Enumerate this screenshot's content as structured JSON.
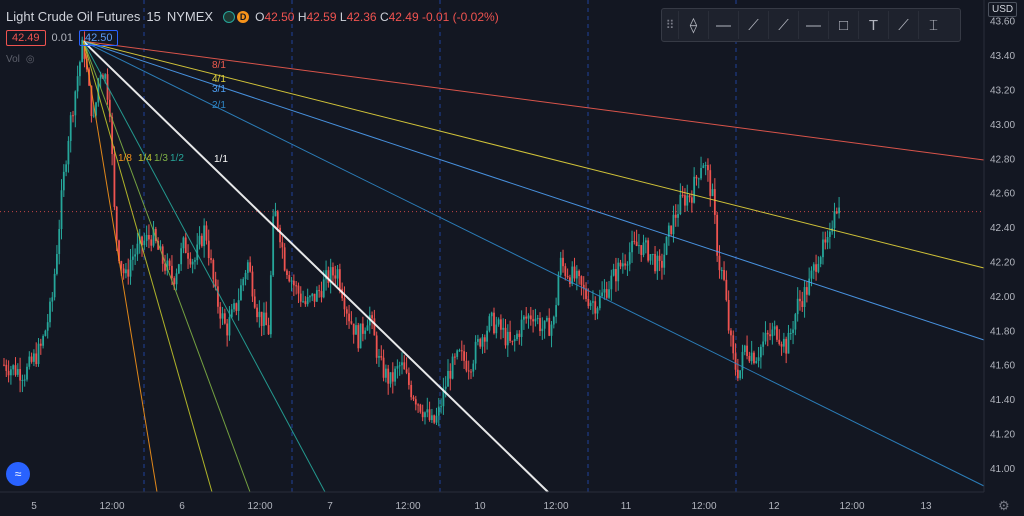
{
  "header": {
    "symbol": "Light Crude Oil Futures",
    "interval": "15",
    "exchange": "NYMEX",
    "badge_letter": "D",
    "ohlc": {
      "o_label": "O",
      "o_value": "42.50",
      "h_label": "H",
      "h_value": "42.59",
      "l_label": "L",
      "l_value": "42.36",
      "c_label": "C",
      "c_value": "42.49",
      "change": "-0.01 (-0.02%)"
    },
    "bid": "42.49",
    "spread": "0.01",
    "ask": "42.50",
    "vol_label": "Vol"
  },
  "toolbar": {
    "items": [
      {
        "name": "drag-handle-icon",
        "glyph": "⠿"
      },
      {
        "name": "vertical-line-icon",
        "glyph": "⟠"
      },
      {
        "name": "horizontal-ray-icon",
        "glyph": "—"
      },
      {
        "name": "trend-line-icon",
        "glyph": "⟋"
      },
      {
        "name": "ray-icon",
        "glyph": "⟋"
      },
      {
        "name": "horizontal-line-icon",
        "glyph": "—"
      },
      {
        "name": "rectangle-icon",
        "glyph": "□"
      },
      {
        "name": "text-icon",
        "glyph": "T"
      },
      {
        "name": "brush-icon",
        "glyph": "⟋"
      },
      {
        "name": "price-range-icon",
        "glyph": "⌶"
      }
    ]
  },
  "axis": {
    "currency": "USD",
    "colors": {
      "up": "#26a69a",
      "down": "#ef5350",
      "current_price": "#ef5350"
    }
  },
  "chart_data": {
    "type": "candlestick",
    "y_ticks": [
      "43.60",
      "43.40",
      "43.20",
      "43.00",
      "42.80",
      "42.60",
      "42.40",
      "42.20",
      "42.00",
      "41.80",
      "41.60",
      "41.40",
      "41.20",
      "41.00"
    ],
    "ylim": [
      40.86,
      43.72
    ],
    "current_price": "42.49",
    "x_ticks": [
      "5",
      "12:00",
      "6",
      "12:00",
      "7",
      "12:00",
      "10",
      "12:00",
      "11",
      "12:00",
      "12",
      "12:00",
      "13"
    ],
    "session_breaks": 6,
    "price_path": [
      [
        0,
        41.6
      ],
      [
        4,
        41.55
      ],
      [
        7,
        41.7
      ],
      [
        9,
        41.95
      ],
      [
        11,
        42.6
      ],
      [
        12,
        42.9
      ],
      [
        13,
        43.1
      ],
      [
        14,
        43.3
      ],
      [
        15,
        43.48
      ],
      [
        16,
        43.2
      ],
      [
        17,
        43.0
      ],
      [
        18,
        43.32
      ],
      [
        19,
        43.3
      ],
      [
        20,
        43.1
      ],
      [
        21,
        42.4
      ],
      [
        22,
        42.2
      ],
      [
        23,
        42.1
      ],
      [
        24,
        42.22
      ],
      [
        26,
        42.3
      ],
      [
        28,
        42.35
      ],
      [
        30,
        42.2
      ],
      [
        32,
        42.1
      ],
      [
        34,
        42.3
      ],
      [
        36,
        42.2
      ],
      [
        38,
        42.4
      ],
      [
        40,
        42.0
      ],
      [
        42,
        41.8
      ],
      [
        44,
        41.95
      ],
      [
        46,
        42.2
      ],
      [
        48,
        41.9
      ],
      [
        50,
        41.8
      ],
      [
        51,
        42.5
      ],
      [
        52,
        42.4
      ],
      [
        53,
        42.2
      ],
      [
        55,
        42.05
      ],
      [
        57,
        41.95
      ],
      [
        59,
        42.0
      ],
      [
        61,
        42.1
      ],
      [
        63,
        42.15
      ],
      [
        65,
        41.9
      ],
      [
        67,
        41.75
      ],
      [
        69,
        41.9
      ],
      [
        71,
        41.6
      ],
      [
        73,
        41.5
      ],
      [
        75,
        41.6
      ],
      [
        77,
        41.45
      ],
      [
        79,
        41.35
      ],
      [
        81,
        41.25
      ],
      [
        82,
        41.3
      ],
      [
        84,
        41.55
      ],
      [
        86,
        41.65
      ],
      [
        88,
        41.6
      ],
      [
        90,
        41.75
      ],
      [
        92,
        41.85
      ],
      [
        94,
        41.8
      ],
      [
        96,
        41.7
      ],
      [
        98,
        41.85
      ],
      [
        100,
        41.9
      ],
      [
        102,
        41.8
      ],
      [
        104,
        41.85
      ],
      [
        105,
        42.2
      ],
      [
        106,
        42.15
      ],
      [
        108,
        42.1
      ],
      [
        110,
        42.0
      ],
      [
        112,
        41.95
      ],
      [
        114,
        42.05
      ],
      [
        116,
        42.15
      ],
      [
        118,
        42.25
      ],
      [
        120,
        42.3
      ],
      [
        122,
        42.25
      ],
      [
        124,
        42.15
      ],
      [
        126,
        42.4
      ],
      [
        128,
        42.55
      ],
      [
        130,
        42.6
      ],
      [
        132,
        42.8
      ],
      [
        133,
        42.7
      ],
      [
        134,
        42.55
      ],
      [
        135,
        42.2
      ],
      [
        136,
        42.1
      ],
      [
        137,
        41.8
      ],
      [
        138,
        41.6
      ],
      [
        139,
        41.55
      ],
      [
        140,
        41.7
      ],
      [
        142,
        41.65
      ],
      [
        144,
        41.75
      ],
      [
        146,
        41.8
      ],
      [
        148,
        41.7
      ],
      [
        150,
        41.95
      ],
      [
        152,
        42.05
      ],
      [
        154,
        42.25
      ],
      [
        156,
        42.3
      ],
      [
        157,
        42.55
      ],
      [
        158,
        42.49
      ]
    ]
  },
  "gann_fan": {
    "origin_price": 43.48,
    "labels": [
      {
        "text": "8/1",
        "color": "#f05b4f"
      },
      {
        "text": "4/1",
        "color": "#e6d53c"
      },
      {
        "text": "3/1",
        "color": "#4e9ff3"
      },
      {
        "text": "2/1",
        "color": "#2f88c9"
      },
      {
        "text": "1/1",
        "color": "#ffffff"
      },
      {
        "text": "1/2",
        "color": "#26a69a"
      },
      {
        "text": "1/3",
        "color": "#7fb045"
      },
      {
        "text": "1/4",
        "color": "#c2c52a"
      },
      {
        "text": "1/8",
        "color": "#f7931a"
      }
    ]
  }
}
